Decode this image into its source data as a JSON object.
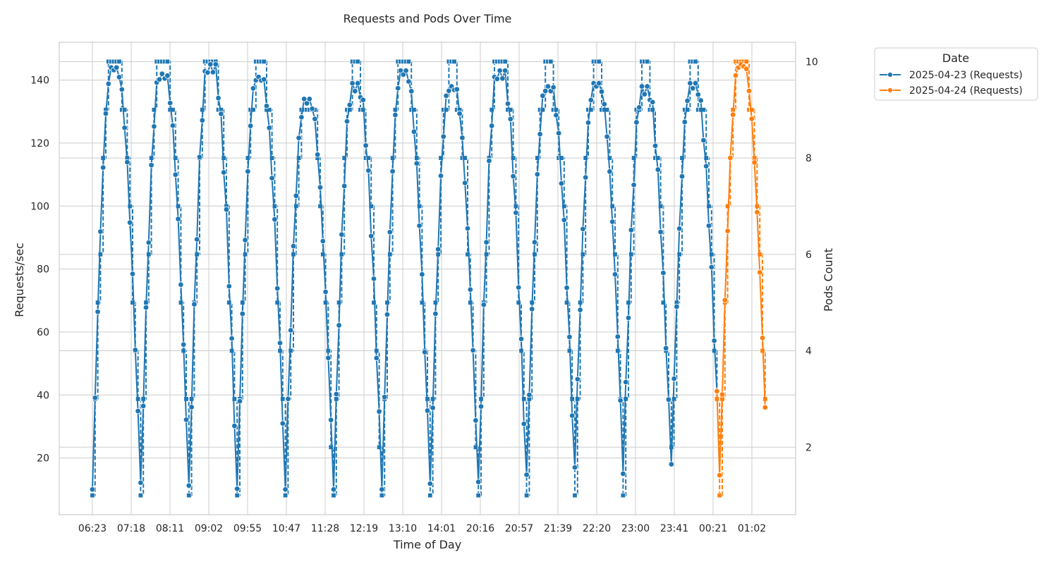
{
  "chart_data": {
    "type": "line",
    "title": "Requests and Pods Over Time",
    "xlabel": "Time of Day",
    "ylabel": "Requests/sec",
    "y2label": "Pods Count",
    "ylim": [
      2,
      152
    ],
    "y2lim": [
      0.6,
      10.4
    ],
    "yticks": [
      20,
      40,
      60,
      80,
      100,
      120,
      140
    ],
    "y2ticks": [
      2,
      4,
      6,
      8,
      10
    ],
    "xticks": [
      "06:23",
      "07:18",
      "08:11",
      "09:02",
      "09:55",
      "10:47",
      "11:28",
      "12:19",
      "13:10",
      "14:01",
      "20:16",
      "20:57",
      "21:39",
      "22:20",
      "23:00",
      "23:41",
      "00:21",
      "01:02"
    ],
    "grid": true,
    "legend": {
      "title": "Date",
      "placement": "outside-top-right",
      "entries": [
        {
          "name": "2025-04-23 (Requests)",
          "color": "#1f77b4"
        },
        {
          "name": "2025-04-24 (Requests)",
          "color": "#ff7f0e"
        }
      ]
    },
    "cycles": [
      {
        "date": "2025-04-23",
        "color": "#1f77b4",
        "min": 10,
        "max": 144
      },
      {
        "date": "2025-04-23",
        "color": "#1f77b4",
        "min": 10,
        "max": 142
      },
      {
        "date": "2025-04-23",
        "color": "#1f77b4",
        "min": 9,
        "max": 145
      },
      {
        "date": "2025-04-23",
        "color": "#1f77b4",
        "min": 10,
        "max": 141
      },
      {
        "date": "2025-04-23",
        "color": "#1f77b4",
        "min": 10,
        "max": 134
      },
      {
        "date": "2025-04-23",
        "color": "#1f77b4",
        "min": 10,
        "max": 139
      },
      {
        "date": "2025-04-23",
        "color": "#1f77b4",
        "min": 10,
        "max": 143
      },
      {
        "date": "2025-04-23",
        "color": "#1f77b4",
        "min": 10,
        "max": 138
      },
      {
        "date": "2025-04-23",
        "color": "#1f77b4",
        "min": 10,
        "max": 143
      },
      {
        "date": "2025-04-23",
        "color": "#1f77b4",
        "min": 14,
        "max": 138
      },
      {
        "date": "2025-04-23",
        "color": "#1f77b4",
        "min": 17,
        "max": 139
      },
      {
        "date": "2025-04-23",
        "color": "#1f77b4",
        "min": 15,
        "max": 138
      },
      {
        "date": "2025-04-23",
        "color": "#1f77b4",
        "min": 18,
        "max": 139
      },
      {
        "date": "2025-04-24",
        "color": "#ff7f0e",
        "min": 13,
        "max": 145
      }
    ]
  }
}
